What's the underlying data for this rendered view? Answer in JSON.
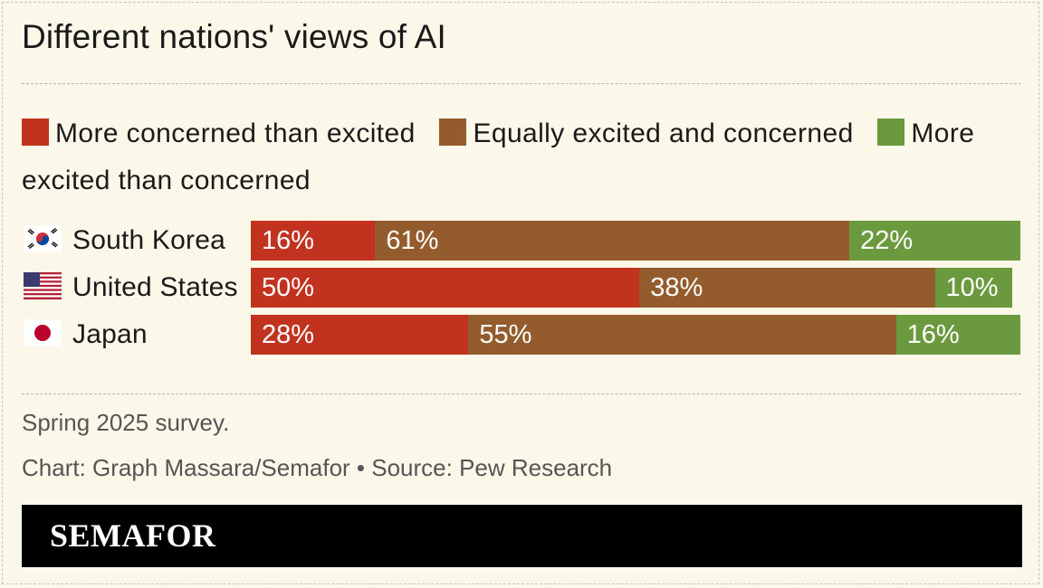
{
  "title": "Different nations' views of AI",
  "legend": [
    {
      "label": "More concerned than excited",
      "color": "#c1321f"
    },
    {
      "label": "Equally excited and concerned",
      "color": "#945c2c"
    },
    {
      "label": "More excited than concerned",
      "color": "#6b9a3e"
    }
  ],
  "chart_data": {
    "type": "bar",
    "orientation": "horizontal",
    "stacked": true,
    "categories": [
      "South Korea",
      "United States",
      "Japan"
    ],
    "series": [
      {
        "name": "More concerned than excited",
        "values": [
          16,
          50,
          28
        ],
        "labels": [
          "16%",
          "50%",
          "28%"
        ],
        "color": "#c1321f"
      },
      {
        "name": "Equally excited and concerned",
        "values": [
          61,
          38,
          55
        ],
        "labels": [
          "61%",
          "38%",
          "55%"
        ],
        "color": "#945c2c"
      },
      {
        "name": "More excited than concerned",
        "values": [
          22,
          10,
          16
        ],
        "labels": [
          "22%",
          "10%",
          "16%"
        ],
        "color": "#6b9a3e"
      }
    ],
    "xlim": [
      0,
      99
    ],
    "flag_icons": [
      "south-korea-flag-icon",
      "united-states-flag-icon",
      "japan-flag-icon"
    ]
  },
  "notes": {
    "survey": "Spring 2025 survey.",
    "credit": "Chart: Graph Massara/Semafor • Source: Pew Research"
  },
  "brand": {
    "name": "SEMAFOR"
  }
}
